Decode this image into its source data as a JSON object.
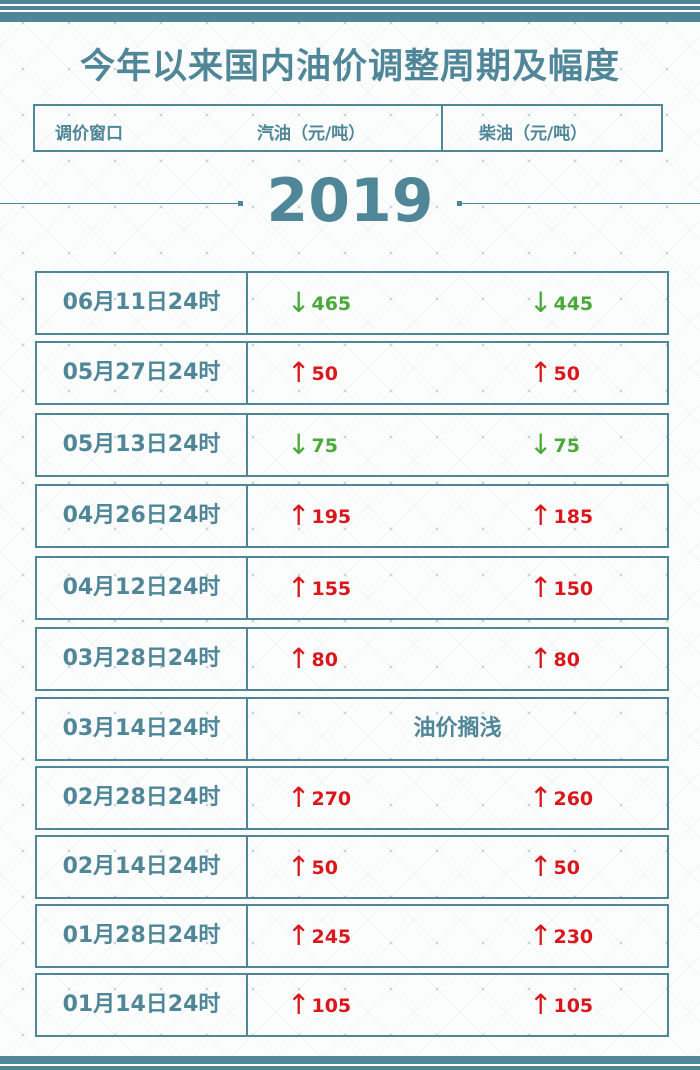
{
  "title": "今年以来国内油价调整周期及幅度",
  "header": {
    "col_window": "调价窗口",
    "col_gasoline": "汽油（元/吨）",
    "col_diesel": "柴油（元/吨）"
  },
  "year": "2019",
  "colors": {
    "theme": "#4f8698",
    "up": "#d9171c",
    "down": "#4aa93a"
  },
  "rows": [
    {
      "date": "06月11日24时",
      "direction": "down",
      "gasoline": "465",
      "diesel": "445"
    },
    {
      "date": "05月27日24时",
      "direction": "up",
      "gasoline": "50",
      "diesel": "50"
    },
    {
      "date": "05月13日24时",
      "direction": "down",
      "gasoline": "75",
      "diesel": "75"
    },
    {
      "date": "04月26日24时",
      "direction": "up",
      "gasoline": "195",
      "diesel": "185"
    },
    {
      "date": "04月12日24时",
      "direction": "up",
      "gasoline": "155",
      "diesel": "150"
    },
    {
      "date": "03月28日24时",
      "direction": "up",
      "gasoline": "80",
      "diesel": "80"
    },
    {
      "date": "03月14日24时",
      "direction": "none",
      "note": "油价搁浅"
    },
    {
      "date": "02月28日24时",
      "direction": "up",
      "gasoline": "270",
      "diesel": "260"
    },
    {
      "date": "02月14日24时",
      "direction": "up",
      "gasoline": "50",
      "diesel": "50"
    },
    {
      "date": "01月28日24时",
      "direction": "up",
      "gasoline": "245",
      "diesel": "230"
    },
    {
      "date": "01月14日24时",
      "direction": "up",
      "gasoline": "105",
      "diesel": "105"
    }
  ]
}
